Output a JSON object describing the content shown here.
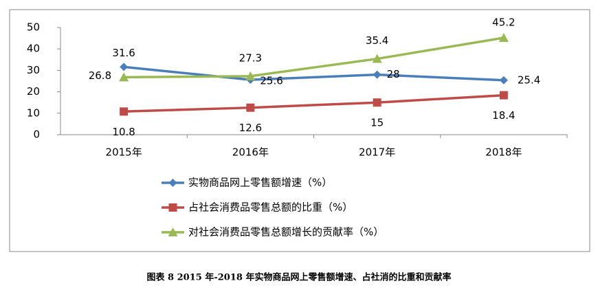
{
  "chart_data": {
    "type": "line",
    "caption": "图表 8   2015 年-2018 年实物商品网上零售额增速、占社消的比重和贡献率",
    "categories": [
      "2015年",
      "2016年",
      "2017年",
      "2018年"
    ],
    "series": [
      {
        "name": "实物商品网上零售额增速（%）",
        "color": "#4a7ebb",
        "marker": "diamond",
        "values": [
          31.6,
          25.6,
          28,
          25.4
        ]
      },
      {
        "name": "占社会消费品零售总额的比重（%）",
        "color": "#be4b48",
        "marker": "square",
        "values": [
          10.8,
          12.6,
          15,
          18.4
        ]
      },
      {
        "name": "对社会消费品零售总额增长的贡献率（%）",
        "color": "#98b954",
        "marker": "triangle",
        "values": [
          26.8,
          27.3,
          35.4,
          45.2
        ]
      }
    ],
    "ylim": [
      0,
      50
    ],
    "yticks": [
      0,
      10,
      20,
      30,
      40,
      50
    ],
    "grid": false
  }
}
